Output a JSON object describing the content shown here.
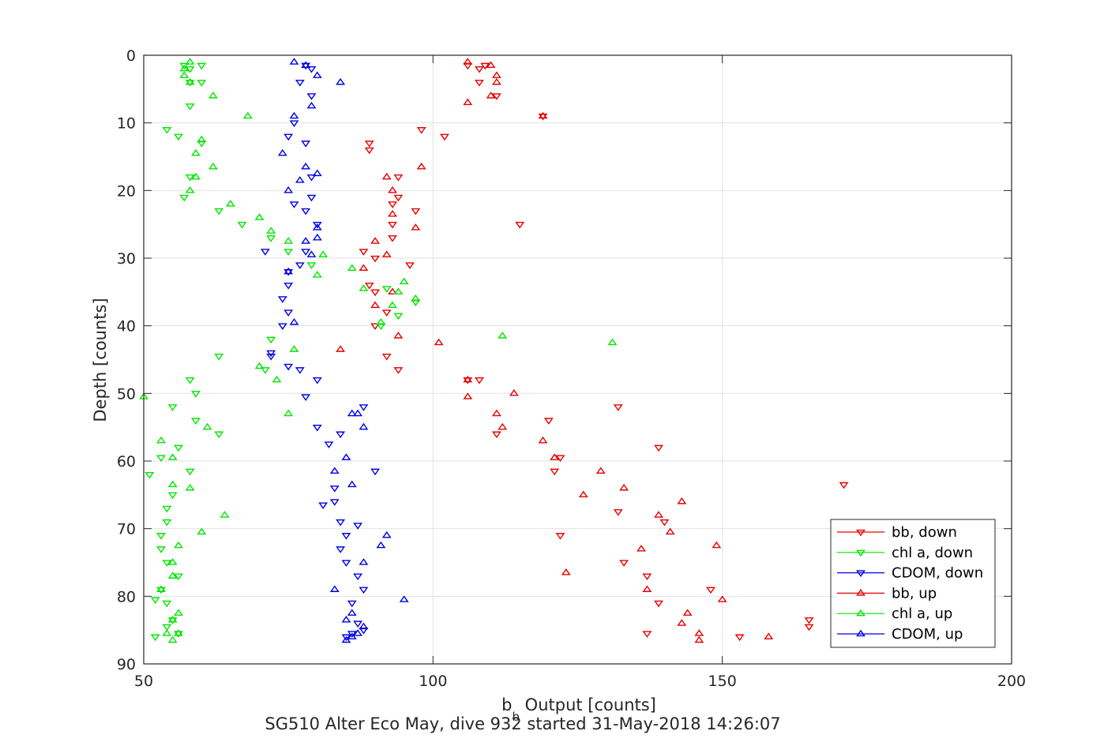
{
  "chart_data": {
    "type": "scatter",
    "title": "SG510 Alter Eco May, dive 932 started 31-May-2018 14:26:07",
    "xlabel_main": "b",
    "xlabel_sub": "b",
    "xlabel_rest": " Output [counts]",
    "ylabel": "Depth [counts]",
    "xlim": [
      50,
      200
    ],
    "ylim": [
      0,
      90
    ],
    "y_reversed": true,
    "xticks": [
      50,
      100,
      150,
      200
    ],
    "yticks": [
      0,
      10,
      20,
      30,
      40,
      50,
      60,
      70,
      80,
      90
    ],
    "grid": true,
    "legend_position": "lower-right",
    "series": [
      {
        "name": "bb, down",
        "color": "#e60000",
        "marker": "triangle-down",
        "points": [
          [
            106,
            1.5
          ],
          [
            108,
            2
          ],
          [
            109,
            1.5
          ],
          [
            108,
            4
          ],
          [
            111,
            6
          ],
          [
            119,
            9
          ],
          [
            98,
            11
          ],
          [
            102,
            12
          ],
          [
            89,
            13
          ],
          [
            89,
            14
          ],
          [
            94,
            18
          ],
          [
            94,
            21
          ],
          [
            93,
            22
          ],
          [
            97,
            23
          ],
          [
            93,
            25
          ],
          [
            115,
            25
          ],
          [
            93,
            27
          ],
          [
            88,
            29
          ],
          [
            90,
            30
          ],
          [
            96,
            31
          ],
          [
            89,
            34
          ],
          [
            90,
            35
          ],
          [
            92,
            38
          ],
          [
            90,
            40
          ],
          [
            92,
            44.5
          ],
          [
            94,
            46.5
          ],
          [
            106,
            48
          ],
          [
            108,
            48
          ],
          [
            132,
            52
          ],
          [
            120,
            54
          ],
          [
            111,
            56
          ],
          [
            139,
            58
          ],
          [
            122,
            59.5
          ],
          [
            121,
            61.5
          ],
          [
            171,
            63.5
          ],
          [
            132,
            67.5
          ],
          [
            140,
            69
          ],
          [
            122,
            71
          ],
          [
            133,
            75
          ],
          [
            137,
            77
          ],
          [
            139,
            81
          ],
          [
            148,
            79
          ],
          [
            165,
            83.5
          ],
          [
            165,
            84.5
          ],
          [
            137,
            85.5
          ],
          [
            153,
            86
          ]
        ]
      },
      {
        "name": "chl a, down",
        "color": "#00e600",
        "marker": "triangle-down",
        "points": [
          [
            57,
            1.5
          ],
          [
            60,
            1.5
          ],
          [
            58,
            2
          ],
          [
            60,
            4
          ],
          [
            58,
            4
          ],
          [
            58,
            7.5
          ],
          [
            54,
            11
          ],
          [
            56,
            12
          ],
          [
            60,
            13
          ],
          [
            58,
            18
          ],
          [
            57,
            21
          ],
          [
            63,
            23
          ],
          [
            67,
            25
          ],
          [
            72,
            27
          ],
          [
            75,
            29
          ],
          [
            79,
            31
          ],
          [
            92,
            34.5
          ],
          [
            97,
            36.5
          ],
          [
            94,
            38.5
          ],
          [
            91,
            40
          ],
          [
            72,
            42
          ],
          [
            63,
            44.5
          ],
          [
            71,
            46.5
          ],
          [
            58,
            48
          ],
          [
            59,
            50
          ],
          [
            55,
            52
          ],
          [
            59,
            54
          ],
          [
            63,
            56
          ],
          [
            56,
            58
          ],
          [
            53,
            59.5
          ],
          [
            58,
            61.5
          ],
          [
            51,
            62
          ],
          [
            55,
            65
          ],
          [
            54,
            67
          ],
          [
            54,
            69
          ],
          [
            53,
            71
          ],
          [
            53,
            73
          ],
          [
            54,
            75
          ],
          [
            56,
            77
          ],
          [
            53,
            79
          ],
          [
            52,
            80.5
          ],
          [
            54,
            81
          ],
          [
            55,
            83.5
          ],
          [
            54,
            84.5
          ],
          [
            56,
            85.5
          ],
          [
            52,
            86
          ]
        ]
      },
      {
        "name": "CDOM, down",
        "color": "#0000e6",
        "marker": "triangle-down",
        "points": [
          [
            78,
            1.5
          ],
          [
            79,
            2
          ],
          [
            77,
            4
          ],
          [
            79,
            6
          ],
          [
            76,
            10
          ],
          [
            75,
            12
          ],
          [
            78,
            13
          ],
          [
            79,
            18
          ],
          [
            79,
            21
          ],
          [
            76,
            22
          ],
          [
            78,
            23
          ],
          [
            80,
            25
          ],
          [
            71,
            29
          ],
          [
            78,
            29
          ],
          [
            77,
            31
          ],
          [
            75,
            32
          ],
          [
            75,
            34
          ],
          [
            74,
            36
          ],
          [
            75,
            38
          ],
          [
            74,
            40
          ],
          [
            72,
            44
          ],
          [
            72,
            44.5
          ],
          [
            75,
            46
          ],
          [
            77,
            46.5
          ],
          [
            80,
            48
          ],
          [
            78,
            50.5
          ],
          [
            84,
            56
          ],
          [
            88,
            52
          ],
          [
            80,
            55
          ],
          [
            82,
            57.5
          ],
          [
            90,
            61.5
          ],
          [
            83,
            64
          ],
          [
            83,
            66
          ],
          [
            81,
            66.5
          ],
          [
            84,
            69
          ],
          [
            87,
            69.5
          ],
          [
            85,
            71
          ],
          [
            84,
            73
          ],
          [
            85,
            75
          ],
          [
            87,
            77
          ],
          [
            88,
            79
          ],
          [
            86,
            81
          ],
          [
            87,
            84
          ],
          [
            88,
            85
          ],
          [
            86,
            85.5
          ],
          [
            85,
            86
          ]
        ]
      },
      {
        "name": "bb, up",
        "color": "#e60000",
        "marker": "triangle-up",
        "points": [
          [
            106,
            1
          ],
          [
            110,
            1.5
          ],
          [
            111,
            3
          ],
          [
            111,
            4
          ],
          [
            106,
            7
          ],
          [
            110,
            6
          ],
          [
            119,
            9
          ],
          [
            98,
            16.5
          ],
          [
            92,
            18
          ],
          [
            93,
            20
          ],
          [
            93,
            23.5
          ],
          [
            97,
            25.5
          ],
          [
            90,
            27.5
          ],
          [
            92,
            29.5
          ],
          [
            88,
            31.5
          ],
          [
            93,
            35
          ],
          [
            90,
            37
          ],
          [
            94,
            41.5
          ],
          [
            84,
            43.5
          ],
          [
            101,
            42.5
          ],
          [
            106,
            48
          ],
          [
            114,
            50
          ],
          [
            106,
            50.5
          ],
          [
            111,
            53
          ],
          [
            112,
            55
          ],
          [
            119,
            57
          ],
          [
            121,
            59.5
          ],
          [
            129,
            61.5
          ],
          [
            133,
            64
          ],
          [
            126,
            65
          ],
          [
            143,
            66
          ],
          [
            139,
            68
          ],
          [
            141,
            70.5
          ],
          [
            149,
            72.5
          ],
          [
            136,
            73
          ],
          [
            123,
            76.5
          ],
          [
            137,
            79
          ],
          [
            150,
            80.5
          ],
          [
            144,
            82.5
          ],
          [
            143,
            84
          ],
          [
            146,
            85.5
          ],
          [
            146,
            86.5
          ],
          [
            158,
            86
          ]
        ]
      },
      {
        "name": "chl a, up",
        "color": "#00e600",
        "marker": "triangle-up",
        "points": [
          [
            58,
            1
          ],
          [
            57,
            2
          ],
          [
            57,
            3
          ],
          [
            58,
            4
          ],
          [
            62,
            6
          ],
          [
            68,
            9
          ],
          [
            60,
            12.5
          ],
          [
            59,
            14.5
          ],
          [
            62,
            16.5
          ],
          [
            59,
            18
          ],
          [
            58,
            20
          ],
          [
            65,
            22
          ],
          [
            70,
            24
          ],
          [
            72,
            26
          ],
          [
            75,
            27.5
          ],
          [
            81,
            29.5
          ],
          [
            80,
            32.5
          ],
          [
            86,
            31.5
          ],
          [
            88,
            34.5
          ],
          [
            95,
            33.5
          ],
          [
            94,
            35
          ],
          [
            93,
            37
          ],
          [
            97,
            36
          ],
          [
            91,
            39.5
          ],
          [
            112,
            41.5
          ],
          [
            131,
            42.5
          ],
          [
            76,
            43.5
          ],
          [
            70,
            46
          ],
          [
            73,
            48
          ],
          [
            75,
            53
          ],
          [
            61,
            55
          ],
          [
            53,
            57
          ],
          [
            55,
            59.5
          ],
          [
            58,
            64
          ],
          [
            55,
            63.5
          ],
          [
            64,
            68
          ],
          [
            60,
            70.5
          ],
          [
            56,
            72.5
          ],
          [
            55,
            75
          ],
          [
            55,
            77
          ],
          [
            53,
            79
          ],
          [
            56,
            82.5
          ],
          [
            55,
            83.5
          ],
          [
            54,
            85.5
          ],
          [
            55,
            86.5
          ],
          [
            56,
            85.5
          ],
          [
            50,
            50.5
          ]
        ]
      },
      {
        "name": "CDOM, up",
        "color": "#0000e6",
        "marker": "triangle-up",
        "points": [
          [
            76,
            1
          ],
          [
            78,
            1.5
          ],
          [
            80,
            3
          ],
          [
            84,
            4
          ],
          [
            79,
            7.5
          ],
          [
            76,
            9
          ],
          [
            74,
            14.5
          ],
          [
            78,
            16.5
          ],
          [
            80,
            17.5
          ],
          [
            75,
            20
          ],
          [
            77,
            18.5
          ],
          [
            80,
            25.5
          ],
          [
            80,
            27
          ],
          [
            78,
            27.5
          ],
          [
            79,
            29.5
          ],
          [
            75,
            32
          ],
          [
            76,
            39.5
          ],
          [
            86,
            53
          ],
          [
            87,
            53
          ],
          [
            88,
            55
          ],
          [
            85,
            59.5
          ],
          [
            83,
            61.5
          ],
          [
            86,
            63.5
          ],
          [
            91,
            72.5
          ],
          [
            92,
            71
          ],
          [
            88,
            75
          ],
          [
            83,
            79
          ],
          [
            95,
            80.5
          ],
          [
            86,
            82.5
          ],
          [
            85,
            83.5
          ],
          [
            88,
            84.5
          ],
          [
            87,
            85.5
          ],
          [
            85,
            86.5
          ],
          [
            86,
            86
          ]
        ]
      }
    ]
  }
}
